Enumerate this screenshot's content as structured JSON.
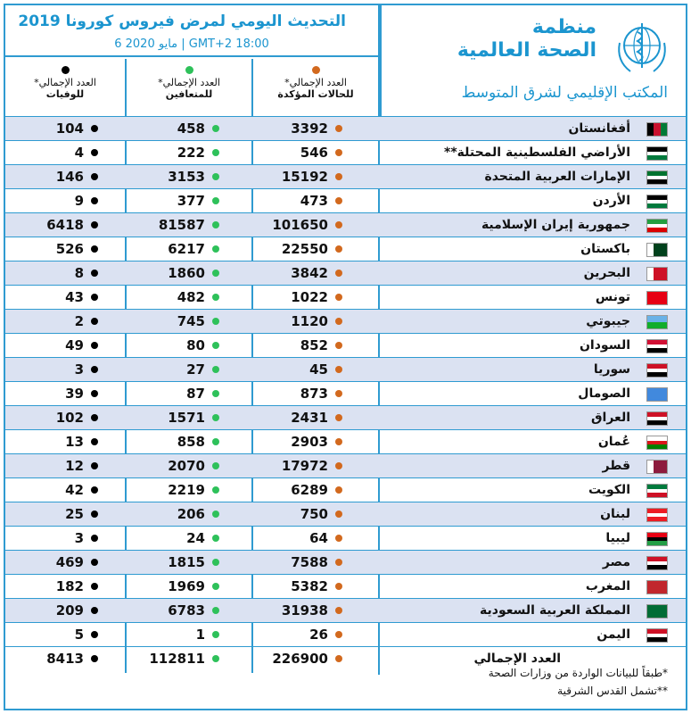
{
  "header": {
    "title": "التحديث اليومي لمرض فيروس كورونا 2019",
    "subtitle": "6 مايو 2020 | GMT+2 18:00",
    "org_name_line1": "منظمة",
    "org_name_line2": "الصحة العالمية",
    "org_sub": "المكتب الإقليمي لشرق المتوسط"
  },
  "columns": {
    "cases": {
      "line1": "العدد الإجمالي*",
      "line2": "للحالات المؤكدة",
      "color": "#d2691e"
    },
    "recovered": {
      "line1": "العدد الإجمالي*",
      "line2": "للمتعافين",
      "color": "#2ec15a"
    },
    "deaths": {
      "line1": "العدد الإجمالي*",
      "line2": "للوفيات",
      "color": "#000000"
    }
  },
  "rows": [
    {
      "country": "أفغانستان",
      "cases": "3392",
      "recovered": "458",
      "deaths": "104",
      "flag": [
        "#000000",
        "#c8102e",
        "#007a36"
      ],
      "flag_dir": "v"
    },
    {
      "country": "الأراضي الفلسطينية المحتلة**",
      "cases": "546",
      "recovered": "222",
      "deaths": "4",
      "flag": [
        "#000000",
        "#ffffff",
        "#007a3d"
      ],
      "flag_dir": "h"
    },
    {
      "country": "الإمارات العربية المتحدة",
      "cases": "15192",
      "recovered": "3153",
      "deaths": "146",
      "flag": [
        "#00732f",
        "#ffffff",
        "#000000"
      ],
      "flag_dir": "h"
    },
    {
      "country": "الأردن",
      "cases": "473",
      "recovered": "377",
      "deaths": "9",
      "flag": [
        "#000000",
        "#ffffff",
        "#007a3d"
      ],
      "flag_dir": "h"
    },
    {
      "country": "جمهورية إيران الإسلامية",
      "cases": "101650",
      "recovered": "81587",
      "deaths": "6418",
      "flag": [
        "#239f40",
        "#ffffff",
        "#da0000"
      ],
      "flag_dir": "h"
    },
    {
      "country": "باكستان",
      "cases": "22550",
      "recovered": "6217",
      "deaths": "526",
      "flag": [
        "#ffffff",
        "#01411c",
        "#01411c"
      ],
      "flag_dir": "v"
    },
    {
      "country": "البحرين",
      "cases": "3842",
      "recovered": "1860",
      "deaths": "8",
      "flag": [
        "#ffffff",
        "#ce1126",
        "#ce1126"
      ],
      "flag_dir": "v"
    },
    {
      "country": "تونس",
      "cases": "1022",
      "recovered": "482",
      "deaths": "43",
      "flag": [
        "#e70013",
        "#e70013",
        "#e70013"
      ],
      "flag_dir": "h"
    },
    {
      "country": "جيبوتي",
      "cases": "1120",
      "recovered": "745",
      "deaths": "2",
      "flag": [
        "#6ab2e7",
        "#12ad2b"
      ],
      "flag_dir": "h"
    },
    {
      "country": "السودان",
      "cases": "852",
      "recovered": "80",
      "deaths": "49",
      "flag": [
        "#d21034",
        "#ffffff",
        "#000000"
      ],
      "flag_dir": "h"
    },
    {
      "country": "سوريا",
      "cases": "45",
      "recovered": "27",
      "deaths": "3",
      "flag": [
        "#ce1126",
        "#ffffff",
        "#000000"
      ],
      "flag_dir": "h"
    },
    {
      "country": "الصومال",
      "cases": "873",
      "recovered": "87",
      "deaths": "39",
      "flag": [
        "#4189dd",
        "#4189dd",
        "#4189dd"
      ],
      "flag_dir": "h"
    },
    {
      "country": "العراق",
      "cases": "2431",
      "recovered": "1571",
      "deaths": "102",
      "flag": [
        "#ce1126",
        "#ffffff",
        "#000000"
      ],
      "flag_dir": "h"
    },
    {
      "country": "عُمان",
      "cases": "2903",
      "recovered": "858",
      "deaths": "13",
      "flag": [
        "#ffffff",
        "#db161b",
        "#008000"
      ],
      "flag_dir": "h"
    },
    {
      "country": "قطر",
      "cases": "17972",
      "recovered": "2070",
      "deaths": "12",
      "flag": [
        "#ffffff",
        "#8d1b3d",
        "#8d1b3d"
      ],
      "flag_dir": "v"
    },
    {
      "country": "الكويت",
      "cases": "6289",
      "recovered": "2219",
      "deaths": "42",
      "flag": [
        "#007a3d",
        "#ffffff",
        "#ce1126"
      ],
      "flag_dir": "h"
    },
    {
      "country": "لبنان",
      "cases": "750",
      "recovered": "206",
      "deaths": "25",
      "flag": [
        "#ed1c24",
        "#ffffff",
        "#ed1c24"
      ],
      "flag_dir": "h"
    },
    {
      "country": "ليبيا",
      "cases": "64",
      "recovered": "24",
      "deaths": "3",
      "flag": [
        "#e70013",
        "#000000",
        "#239e46"
      ],
      "flag_dir": "h"
    },
    {
      "country": "مصر",
      "cases": "7588",
      "recovered": "1815",
      "deaths": "469",
      "flag": [
        "#ce1126",
        "#ffffff",
        "#000000"
      ],
      "flag_dir": "h"
    },
    {
      "country": "المغرب",
      "cases": "5382",
      "recovered": "1969",
      "deaths": "182",
      "flag": [
        "#c1272d",
        "#c1272d",
        "#c1272d"
      ],
      "flag_dir": "h"
    },
    {
      "country": "المملكة العربية السعودية",
      "cases": "31938",
      "recovered": "6783",
      "deaths": "209",
      "flag": [
        "#006c35",
        "#006c35",
        "#006c35"
      ],
      "flag_dir": "h"
    },
    {
      "country": "اليمن",
      "cases": "26",
      "recovered": "1",
      "deaths": "5",
      "flag": [
        "#ce1126",
        "#ffffff",
        "#000000"
      ],
      "flag_dir": "h"
    }
  ],
  "total": {
    "label": "العدد الإجمالي",
    "cases": "226900",
    "recovered": "112811",
    "deaths": "8413"
  },
  "notes": {
    "note1": "*طبقاً للبيانات الواردة من وزارات الصحة",
    "note2": "**تشمل القدس الشرقية"
  }
}
